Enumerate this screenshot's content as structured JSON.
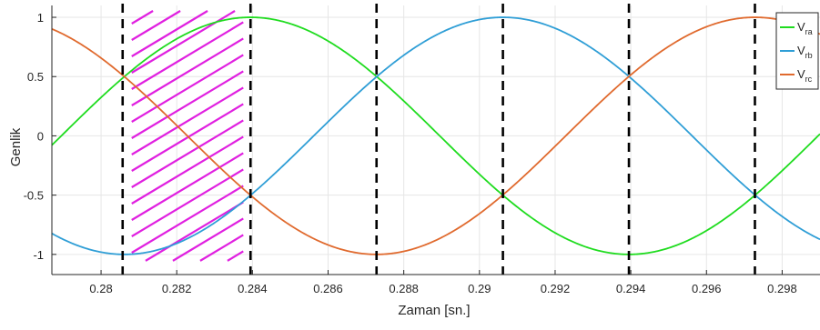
{
  "chart_data": {
    "type": "line",
    "title": "",
    "xlabel": "Zaman [sn.]",
    "ylabel": "Genlik",
    "xlim": [
      0.2787,
      0.299
    ],
    "ylim": [
      -1.17,
      1.1
    ],
    "grid": true,
    "legend_position": "top-right",
    "x_ticks": [
      0.28,
      0.282,
      0.284,
      0.286,
      0.288,
      0.29,
      0.292,
      0.294,
      0.296,
      0.298
    ],
    "x_tick_labels": [
      "0.28",
      "0.282",
      "0.284",
      "0.286",
      "0.288",
      "0.29",
      "0.292",
      "0.294",
      "0.296",
      "0.298"
    ],
    "y_ticks": [
      -1,
      -0.5,
      0,
      0.5,
      1
    ],
    "y_tick_labels": [
      "-1",
      "-0.5",
      "0",
      "0.5",
      "1"
    ],
    "series": [
      {
        "name": "Vra",
        "base": "V",
        "sub": "ra",
        "color": "#1fdc1f",
        "peak_x": 0.28395,
        "amplitude": 1,
        "frequency_hz": 50,
        "values_sampled": [
          [
            0.2787,
            -0.05
          ],
          [
            0.2805,
            0.5
          ],
          [
            0.28395,
            1.0
          ],
          [
            0.2872,
            0.5
          ],
          [
            0.2905,
            -0.5
          ],
          [
            0.2939,
            -1.0
          ],
          [
            0.2972,
            -0.5
          ],
          [
            0.299,
            0.0
          ]
        ]
      },
      {
        "name": "Vrb",
        "base": "V",
        "sub": "rb",
        "color": "#2f9ed6",
        "peak_x": 0.29062,
        "amplitude": 1,
        "frequency_hz": 50,
        "values_sampled": [
          [
            0.2787,
            -0.85
          ],
          [
            0.2806,
            -1.0
          ],
          [
            0.28395,
            -0.5
          ],
          [
            0.2872,
            0.5
          ],
          [
            0.29062,
            1.0
          ],
          [
            0.2939,
            0.5
          ],
          [
            0.2972,
            -0.5
          ],
          [
            0.299,
            -0.88
          ]
        ]
      },
      {
        "name": "Vrc",
        "base": "V",
        "sub": "rc",
        "color": "#e06a2e",
        "peak_x": 0.29728,
        "amplitude": 1,
        "frequency_hz": 50,
        "values_sampled": [
          [
            0.2787,
            0.88
          ],
          [
            0.2805,
            0.5
          ],
          [
            0.28395,
            -0.5
          ],
          [
            0.2872,
            -1.0
          ],
          [
            0.2905,
            -0.5
          ],
          [
            0.2939,
            0.5
          ],
          [
            0.29728,
            1.0
          ],
          [
            0.299,
            0.88
          ]
        ]
      }
    ],
    "vertical_markers": {
      "color": "#000000",
      "style": "dashed",
      "x": [
        0.28057,
        0.28395,
        0.28728,
        0.29062,
        0.29395,
        0.29728
      ]
    },
    "hatched_region": {
      "color": "#e020e0",
      "x_range": [
        0.28057,
        0.28395
      ],
      "y_range": [
        -1.1,
        1.1
      ]
    }
  }
}
